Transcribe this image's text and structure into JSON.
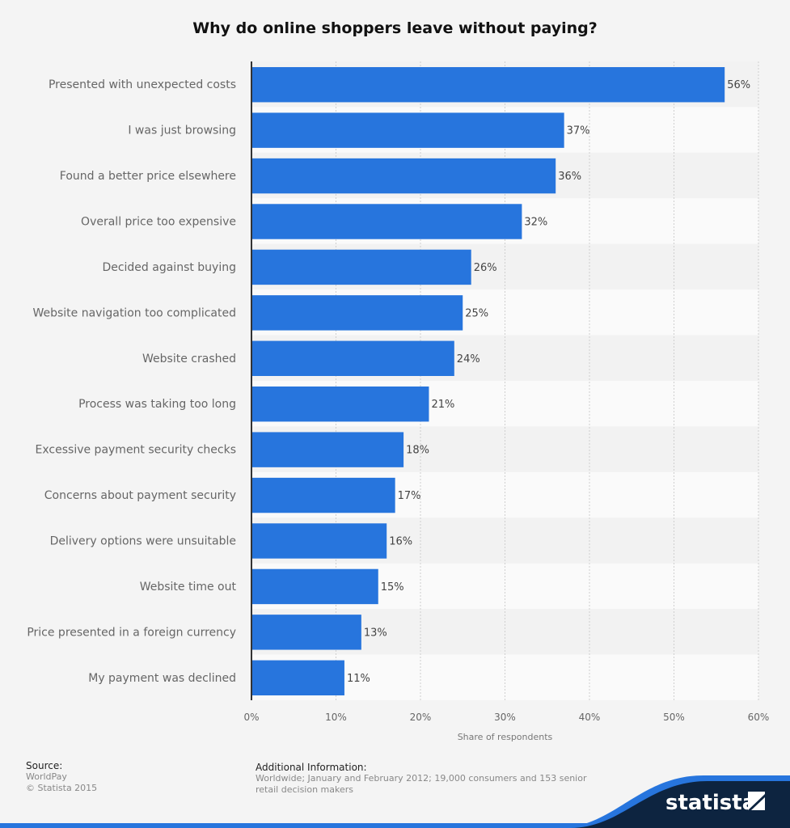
{
  "chart_data": {
    "type": "bar",
    "orientation": "horizontal",
    "title": "Why do online shoppers leave without paying?",
    "xlabel": "Share of respondents",
    "ylabel": "",
    "categories": [
      "Presented with unexpected costs",
      "I was just browsing",
      "Found a better price elsewhere",
      "Overall price too expensive",
      "Decided against buying",
      "Website navigation too complicated",
      "Website crashed",
      "Process was taking too long",
      "Excessive payment security checks",
      "Concerns about payment security",
      "Delivery options were unsuitable",
      "Website time out",
      "Price presented in a foreign currency",
      "My payment was declined"
    ],
    "values": [
      56,
      37,
      36,
      32,
      26,
      25,
      24,
      21,
      18,
      17,
      16,
      15,
      13,
      11
    ],
    "data_labels": [
      "56%",
      "37%",
      "36%",
      "32%",
      "26%",
      "25%",
      "24%",
      "21%",
      "18%",
      "17%",
      "16%",
      "15%",
      "13%",
      "11%"
    ],
    "xlim": [
      0,
      60
    ],
    "xticks": [
      "0%",
      "10%",
      "20%",
      "30%",
      "40%",
      "50%",
      "60%"
    ],
    "grid": true,
    "bar_color": "#2775dd"
  },
  "footer": {
    "source_heading": "Source:",
    "source": "WorldPay",
    "copyright": "© Statista 2015",
    "info_heading": "Additional Information:",
    "info_line1": "Worldwide; January and February 2012; 19,000 consumers and 153 senior",
    "info_line2": "retail decision makers",
    "logo_text": "statista"
  }
}
